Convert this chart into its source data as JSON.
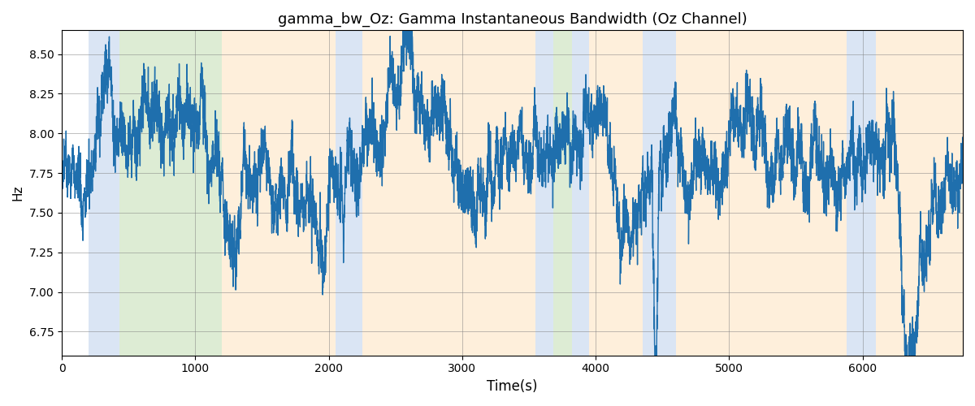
{
  "title": "gamma_bw_Oz: Gamma Instantaneous Bandwidth (Oz Channel)",
  "xlabel": "Time(s)",
  "ylabel": "Hz",
  "ylim": [
    6.6,
    8.65
  ],
  "xlim": [
    0,
    6750
  ],
  "background_regions": [
    {
      "xmin": 200,
      "xmax": 430,
      "color": "#AEC6E8",
      "alpha": 0.45
    },
    {
      "xmin": 430,
      "xmax": 1200,
      "color": "#B5D5A0",
      "alpha": 0.45
    },
    {
      "xmin": 1200,
      "xmax": 2050,
      "color": "#FDDCB0",
      "alpha": 0.45
    },
    {
      "xmin": 2050,
      "xmax": 2250,
      "color": "#AEC6E8",
      "alpha": 0.45
    },
    {
      "xmin": 2250,
      "xmax": 3550,
      "color": "#FDDCB0",
      "alpha": 0.45
    },
    {
      "xmin": 3550,
      "xmax": 3680,
      "color": "#AEC6E8",
      "alpha": 0.45
    },
    {
      "xmin": 3680,
      "xmax": 3820,
      "color": "#B5D5A0",
      "alpha": 0.45
    },
    {
      "xmin": 3820,
      "xmax": 3950,
      "color": "#AEC6E8",
      "alpha": 0.45
    },
    {
      "xmin": 3950,
      "xmax": 4350,
      "color": "#FDDCB0",
      "alpha": 0.45
    },
    {
      "xmin": 4350,
      "xmax": 4600,
      "color": "#AEC6E8",
      "alpha": 0.45
    },
    {
      "xmin": 4600,
      "xmax": 5880,
      "color": "#FDDCB0",
      "alpha": 0.45
    },
    {
      "xmin": 5880,
      "xmax": 6100,
      "color": "#AEC6E8",
      "alpha": 0.45
    },
    {
      "xmin": 6100,
      "xmax": 6750,
      "color": "#FDDCB0",
      "alpha": 0.45
    }
  ],
  "line_color": "#1F6FAD",
  "line_width": 1.0,
  "seed": 7,
  "n_points": 6700,
  "base_freq": 8.0,
  "title_fontsize": 13
}
